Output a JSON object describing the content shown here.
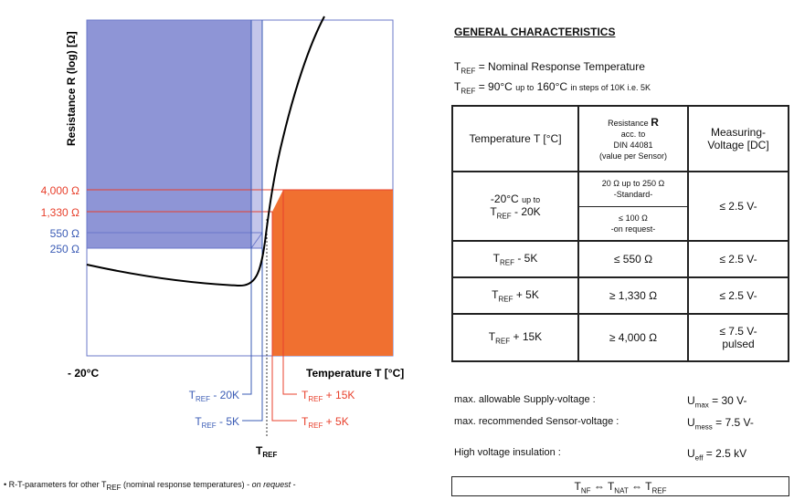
{
  "chart_data": {
    "type": "diagram",
    "ylabel": "Resistance R (log) [Ω]",
    "xlabel": "Temperature T [°C]",
    "x_start_label": "- 20°C",
    "y_levels": [
      {
        "label": "4,000 Ω",
        "color": "#e8402c"
      },
      {
        "label": "1,330 Ω",
        "color": "#e8402c"
      },
      {
        "label": "550 Ω",
        "color": "#3a5bb5"
      },
      {
        "label": "250 Ω",
        "color": "#3a5bb5"
      }
    ],
    "x_markers": [
      {
        "label": "T_REF - 20K",
        "color": "#3a5bb5"
      },
      {
        "label": "T_REF - 5K",
        "color": "#3a5bb5"
      },
      {
        "label": "T_REF + 15K",
        "color": "#e8402c"
      },
      {
        "label": "T_REF + 5K",
        "color": "#e8402c"
      }
    ],
    "tref_label": "TREF",
    "colors": {
      "blue_region": "#8e95d6",
      "orange_region": "#f07030",
      "blue_text": "#3a5bb5",
      "red_text": "#e8402c"
    }
  },
  "right": {
    "title": "GENERAL CHARACTERISTICS",
    "tref_def": "= Nominal Response Temperature",
    "tref_range_main": "= 90°C",
    "tref_range_small": "up to",
    "tref_range_main2": "160°C",
    "tref_range_small2": "in steps of 10K i.e. 5K"
  },
  "table": {
    "header": {
      "col1": "Temperature T [°C]",
      "col2_a": "Resistance",
      "col2_b": "acc. to",
      "col2_c": "DIN 44081",
      "col2_d": "(value per Sensor)",
      "col3": "Measuring-Voltage [DC]"
    },
    "row1": {
      "temp_a": "-20°C",
      "temp_small": "up to",
      "temp_b": "- 20K",
      "res_std": "20 Ω up to 250 Ω",
      "res_std_note": "-Standard-",
      "res_req": "≤ 100 Ω",
      "res_req_note": "-on request-",
      "voltage": "≤ 2.5 V-"
    },
    "row2": {
      "temp": "- 5K",
      "res": "≤ 550 Ω",
      "voltage": "≤ 2.5 V-"
    },
    "row3": {
      "temp": "+ 5K",
      "res": "≥ 1,330 Ω",
      "voltage": "≤ 2.5 V-"
    },
    "row4": {
      "temp": "+ 15K",
      "res": "≥ 4,000 Ω",
      "voltage": "≤ 7.5 V-",
      "voltage_note": "pulsed"
    }
  },
  "specs": {
    "supply_label": "max. allowable Supply-voltage :",
    "supply_value": "= 30 V-",
    "sensor_label": "max. recommended Sensor-voltage :",
    "sensor_value": "= 7.5 V-",
    "insulation_label": "High voltage insulation :",
    "insulation_value": "= 2.5 kV"
  },
  "footer": {
    "note_a": "• R-T-parameters for other T",
    "note_b": "(nominal response temperatures) -",
    "note_c": "on request",
    "note_d": "-"
  }
}
